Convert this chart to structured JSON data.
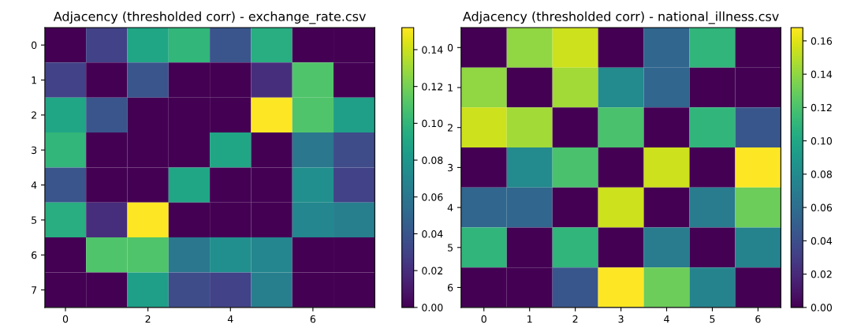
{
  "chart_data": [
    {
      "type": "heatmap",
      "title": "Adjacency (thresholded corr) - exchange_rate.csv",
      "categories": [
        "0",
        null,
        "2",
        null,
        "4",
        null,
        "6",
        null
      ],
      "y_categories": [
        "0",
        "1",
        "2",
        "3",
        "4",
        "5",
        "6",
        "7"
      ],
      "cells": [
        [
          0,
          0.03,
          0.09,
          0.1,
          0.04,
          0.095,
          0,
          0
        ],
        [
          0.03,
          0,
          0.04,
          0,
          0,
          0.02,
          0.11,
          0
        ],
        [
          0.09,
          0.04,
          0,
          0,
          0,
          0.152,
          0.11,
          0.085
        ],
        [
          0.1,
          0,
          0,
          0,
          0.09,
          0,
          0.06,
          0.035
        ],
        [
          0.04,
          0,
          0,
          0.09,
          0,
          0,
          0.075,
          0.03
        ],
        [
          0.095,
          0.02,
          0.152,
          0,
          0,
          0,
          0.07,
          0.065
        ],
        [
          0,
          0.11,
          0.11,
          0.06,
          0.075,
          0.07,
          0,
          0
        ],
        [
          0,
          0,
          0.085,
          0.035,
          0.03,
          0.065,
          0,
          0
        ]
      ],
      "clim": [
        0,
        0.152
      ],
      "cticks": [
        {
          "value": 0,
          "label": "0.00"
        },
        {
          "value": 0.02,
          "label": "0.02"
        },
        {
          "value": 0.04,
          "label": "0.04"
        },
        {
          "value": 0.06,
          "label": "0.06"
        },
        {
          "value": 0.08,
          "label": "0.08"
        },
        {
          "value": 0.1,
          "label": "0.10"
        },
        {
          "value": 0.12,
          "label": "0.12"
        },
        {
          "value": 0.14,
          "label": "0.14"
        }
      ]
    },
    {
      "type": "heatmap",
      "title": "Adjacency (thresholded corr) - national_illness.csv",
      "categories": [
        "0",
        "1",
        "2",
        "3",
        "4",
        "5",
        "6"
      ],
      "y_categories": [
        "0",
        "1",
        "2",
        "3",
        "4",
        "5",
        "6"
      ],
      "cells": [
        [
          0,
          0.14,
          0.155,
          0,
          0.055,
          0.11,
          0
        ],
        [
          0.14,
          0,
          0.145,
          0.08,
          0.055,
          0,
          0
        ],
        [
          0.155,
          0.145,
          0,
          0.12,
          0,
          0.11,
          0.045
        ],
        [
          0,
          0.08,
          0.12,
          0,
          0.155,
          0,
          0.168
        ],
        [
          0.055,
          0.055,
          0,
          0.155,
          0,
          0.07,
          0.13
        ],
        [
          0.11,
          0,
          0.11,
          0,
          0.07,
          0,
          0.075
        ],
        [
          0,
          0,
          0.045,
          0.168,
          0.13,
          0.075,
          0
        ]
      ],
      "clim": [
        0,
        0.168
      ],
      "cticks": [
        {
          "value": 0,
          "label": "0.00"
        },
        {
          "value": 0.02,
          "label": "0.02"
        },
        {
          "value": 0.04,
          "label": "0.04"
        },
        {
          "value": 0.06,
          "label": "0.06"
        },
        {
          "value": 0.08,
          "label": "0.08"
        },
        {
          "value": 0.1,
          "label": "0.10"
        },
        {
          "value": 0.12,
          "label": "0.12"
        },
        {
          "value": 0.14,
          "label": "0.14"
        },
        {
          "value": 0.16,
          "label": "0.16"
        }
      ]
    }
  ]
}
